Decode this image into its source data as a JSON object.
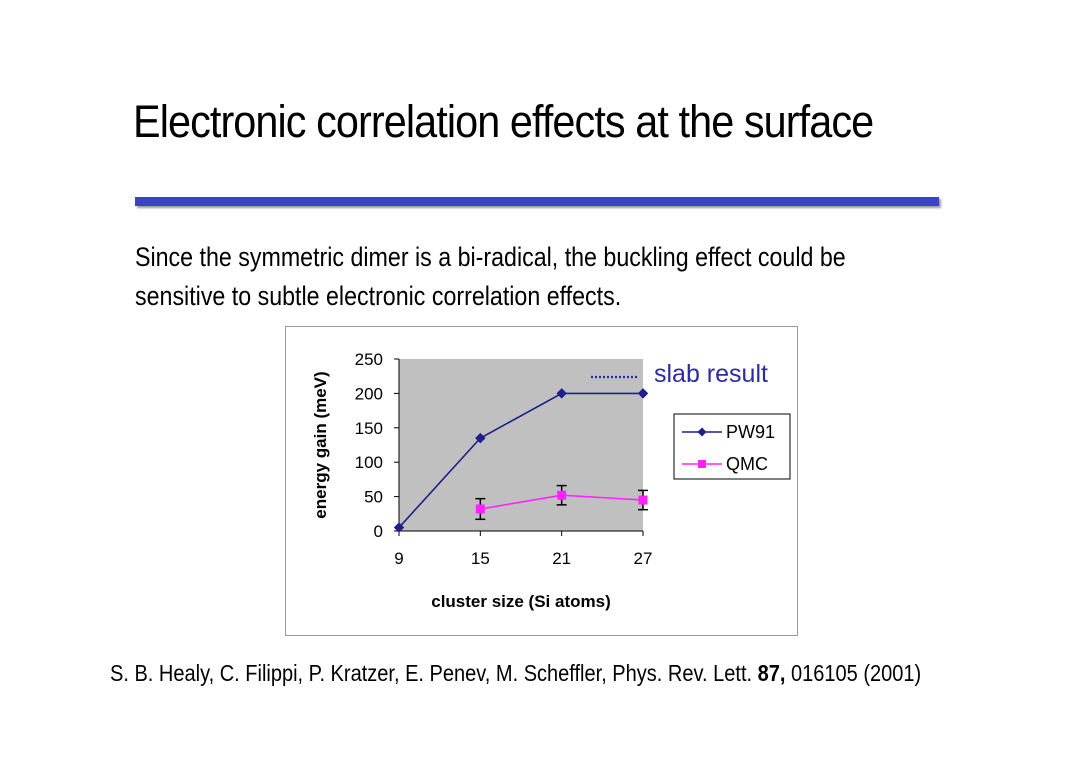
{
  "slide": {
    "title": "Electronic correlation effects at the surface",
    "body_lines": [
      "Since the symmetric dimer is a bi-radical, the buckling effect could be",
      "sensitive to subtle electronic correlation effects."
    ],
    "citation_prefix": "S. B. Healy, C. Filippi, P. Kratzer, E. Penev, M. Scheffler, Phys. Rev. Lett. ",
    "citation_volume": "87,",
    "citation_suffix": " 016105 (2001)",
    "colors": {
      "title_rule": "#3a44c6"
    }
  },
  "chart_data": {
    "type": "line",
    "x": [
      9,
      15,
      21,
      27
    ],
    "xticks": [
      "9",
      "15",
      "21",
      "27"
    ],
    "yticks": [
      "0",
      "50",
      "100",
      "150",
      "200",
      "250"
    ],
    "xlabel": "cluster size (Si atoms)",
    "ylabel": "energy gain (meV)",
    "xlim": [
      9,
      27
    ],
    "ylim": [
      0,
      250
    ],
    "grid": false,
    "plot_background": "#c0c0c0",
    "legend_position": "right",
    "series": [
      {
        "name": "PW91",
        "values": [
          5,
          135,
          200,
          200
        ],
        "color": "#1e1e8c",
        "marker": "diamond"
      },
      {
        "name": "QMC",
        "values": [
          null,
          32,
          52,
          45
        ],
        "errors": [
          null,
          15,
          14,
          14
        ],
        "color": "#ff22ff",
        "marker": "square"
      }
    ],
    "annotation": {
      "label": "slab result",
      "line_style": "dotted",
      "color": "#2b2ba6"
    }
  }
}
